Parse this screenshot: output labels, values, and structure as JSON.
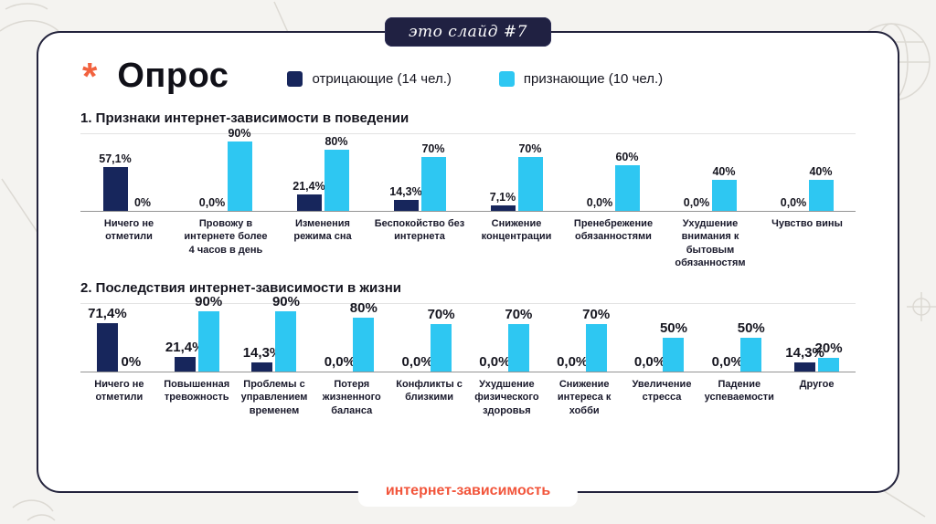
{
  "badge": {
    "text": "это слайд #7"
  },
  "header": {
    "asterisk": "*",
    "title": "Опрос"
  },
  "colors": {
    "navy": "#17265c",
    "cyan": "#2ec7f2",
    "orange": "#f2623f"
  },
  "chart_data": [
    {
      "type": "bar",
      "title": "1. Признаки интернет-зависимости в поведении",
      "ylim": [
        0,
        100
      ],
      "categories": [
        "Ничего не отметили",
        "Провожу в интернете более 4 часов в день",
        "Изменения режима сна",
        "Беспокойство без интернета",
        "Снижение концентрации",
        "Пренебрежение обязанностями",
        "Ухудшение внимания к бытовым обязанностям",
        "Чувство вины"
      ],
      "series": [
        {
          "name": "отрицающие (14 чел.)",
          "color": "#17265c",
          "values": [
            57.1,
            0,
            21.4,
            14.3,
            7.1,
            0,
            0,
            0
          ],
          "labels": [
            "57,1%",
            "0,0%",
            "21,4%",
            "14,3%",
            "7,1%",
            "0,0%",
            "0,0%",
            "0,0%"
          ]
        },
        {
          "name": "признающие (10 чел.)",
          "color": "#2ec7f2",
          "values": [
            0,
            90,
            80,
            70,
            70,
            60,
            40,
            40
          ],
          "labels": [
            "0%",
            "90%",
            "80%",
            "70%",
            "70%",
            "60%",
            "40%",
            "40%"
          ]
        }
      ]
    },
    {
      "type": "bar",
      "title": "2. Последствия интернет-зависимости в жизни",
      "ylim": [
        0,
        100
      ],
      "categories": [
        "Ничего не отметили",
        "Повышенная тревожность",
        "Проблемы с управлением временем",
        "Потеря жизненного баланса",
        "Конфликты с близкими",
        "Ухудшение физического здоровья",
        "Снижение интереса к хобби",
        "Увеличение стресса",
        "Падение успеваемости",
        "Другое"
      ],
      "series": [
        {
          "name": "отрицающие (14 чел.)",
          "color": "#17265c",
          "values": [
            71.4,
            21.4,
            14.3,
            0,
            0,
            0,
            0,
            0,
            0,
            14.3
          ],
          "labels": [
            "71,4%",
            "21,4%",
            "14,3%",
            "0,0%",
            "0,0%",
            "0,0%",
            "0,0%",
            "0,0%",
            "0,0%",
            "14,3%"
          ]
        },
        {
          "name": "признающие (10 чел.)",
          "color": "#2ec7f2",
          "values": [
            0,
            90,
            90,
            80,
            70,
            70,
            70,
            50,
            50,
            20
          ],
          "labels": [
            "0%",
            "90%",
            "90%",
            "80%",
            "70%",
            "70%",
            "70%",
            "50%",
            "50%",
            "20%"
          ]
        }
      ]
    }
  ],
  "footer": {
    "label": "интернет-зависимость"
  }
}
